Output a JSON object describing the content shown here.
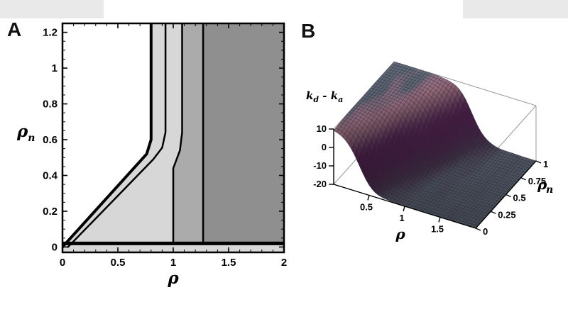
{
  "page": {
    "background": "#ffffff",
    "decor_strip_color": "#e9e9e9"
  },
  "panels": {
    "a": {
      "label": "A"
    },
    "b": {
      "label": "B"
    }
  },
  "chart_data": [
    {
      "panel": "A",
      "type": "area",
      "subtype": "phase_diagram",
      "xlabel": "ρ",
      "ylabel_base": "ρ",
      "ylabel_sub": "n",
      "xlim": [
        0,
        2
      ],
      "ylim": [
        -0.03,
        1.25
      ],
      "x_tick_values": [
        0,
        0.5,
        1,
        1.5,
        2
      ],
      "x_tick_labels": [
        "0",
        "0.5",
        "1",
        "1.5",
        "2"
      ],
      "y_tick_values": [
        0,
        0.2,
        0.4,
        0.6,
        0.8,
        1,
        1.2
      ],
      "y_tick_labels": [
        "0",
        "0.2",
        "0.4",
        "0.6",
        "0.8",
        "1",
        "1.2"
      ],
      "x_minor_step": 0.1,
      "y_minor_step": 0.05,
      "base_fill": "#d7d7d7",
      "regions": [
        {
          "name": "phase-region-white",
          "fill": "#ffffff",
          "points": [
            [
              0,
              0
            ],
            [
              0.76,
              0.52
            ],
            [
              0.8,
              0.6
            ],
            [
              0.8,
              1.25
            ],
            [
              0,
              1.25
            ]
          ]
        },
        {
          "name": "phase-region-medium",
          "fill": "#ababab",
          "points": [
            [
              1,
              0.02
            ],
            [
              1,
              0.44
            ],
            [
              1.06,
              0.54
            ],
            [
              1.08,
              0.64
            ],
            [
              1.08,
              1.25
            ],
            [
              1.27,
              1.25
            ],
            [
              1.27,
              0.02
            ]
          ]
        },
        {
          "name": "phase-region-dark",
          "fill": "#8f8f8f",
          "points": [
            [
              1.27,
              0.02
            ],
            [
              2,
              0.02
            ],
            [
              2,
              1.25
            ],
            [
              1.27,
              1.25
            ]
          ]
        }
      ],
      "boundaries": [
        {
          "name": "boundary-diagonal",
          "width": 4,
          "points": [
            [
              0,
              0
            ],
            [
              0.76,
              0.52
            ],
            [
              0.8,
              0.6
            ],
            [
              0.8,
              1.25
            ]
          ]
        },
        {
          "name": "boundary-second",
          "width": 2.5,
          "points": [
            [
              0.05,
              0
            ],
            [
              0.82,
              0.49
            ],
            [
              0.9,
              0.555
            ],
            [
              0.93,
              0.64
            ],
            [
              0.93,
              1.25
            ]
          ]
        },
        {
          "name": "boundary-third",
          "width": 2.5,
          "points": [
            [
              1,
              0.02
            ],
            [
              1,
              0.44
            ],
            [
              1.06,
              0.54
            ],
            [
              1.08,
              0.64
            ],
            [
              1.08,
              1.25
            ]
          ]
        },
        {
          "name": "boundary-fourth",
          "width": 2.5,
          "points": [
            [
              1.27,
              0.02
            ],
            [
              1.27,
              1.25
            ]
          ]
        },
        {
          "name": "boundary-bottom",
          "width": 5,
          "points": [
            [
              0,
              0.02
            ],
            [
              2,
              0.02
            ]
          ]
        }
      ]
    },
    {
      "panel": "B",
      "type": "surface",
      "xlabel": "ρ",
      "ylabel_base": "ρ",
      "ylabel_sub": "n",
      "zlabel_parts": [
        {
          "t": "k",
          "sub": false
        },
        {
          "t": "d",
          "sub": true
        },
        {
          "t": " - ",
          "sub": false
        },
        {
          "t": "k",
          "sub": false
        },
        {
          "t": "a",
          "sub": true
        }
      ],
      "xlim": [
        0,
        2
      ],
      "ylim": [
        0,
        1
      ],
      "zlim": [
        -20,
        10
      ],
      "x_tick_values": [
        0.5,
        1,
        1.5
      ],
      "x_tick_labels": [
        "0.5",
        "1",
        "1.5"
      ],
      "y_tick_values": [
        0,
        0.25,
        0.5,
        0.75,
        1
      ],
      "y_tick_labels": [
        "0",
        "0.25",
        "0.5",
        "0.75",
        "1"
      ],
      "z_tick_values": [
        10,
        0,
        -10,
        -20
      ],
      "z_tick_labels": [
        "10",
        "0",
        "-10",
        "-20"
      ],
      "surface_model": {
        "z_high": 10,
        "z_low": -20,
        "center_intercept": 0.35,
        "center_slope": 0.75,
        "sigmoid_width": 0.1
      },
      "grid_samples": {
        "rho": [
          0,
          0.25,
          0.5,
          0.75,
          1,
          1.25,
          1.5,
          1.75,
          2
        ],
        "rho_n": [
          0,
          0.25,
          0.5,
          0.75,
          1
        ],
        "z": [
          [
            9.1,
            1.9,
            -14.5,
            -19.5,
            -20,
            -20,
            -20,
            -20,
            -20
          ],
          [
            9.9,
            8.4,
            -2.0,
            -16.7,
            -19.7,
            -20,
            -20,
            -20,
            -20
          ],
          [
            10,
            9.8,
            7.3,
            -6.5,
            -18.1,
            -19.8,
            -20,
            -20,
            -20
          ],
          [
            10,
            10,
            9.5,
            5.0,
            -11.3,
            -19.0,
            -19.9,
            -20,
            -20
          ],
          [
            10,
            10,
            10,
            9.1,
            1.9,
            -14.5,
            -19.5,
            -20,
            -20
          ]
        ]
      },
      "colors": {
        "flat": "#67707f",
        "steep": "#6f2d6a",
        "ridge": "#d795a8",
        "mesh": "rgba(20,24,38,0.45)",
        "box": "#9a9a9a"
      }
    }
  ]
}
